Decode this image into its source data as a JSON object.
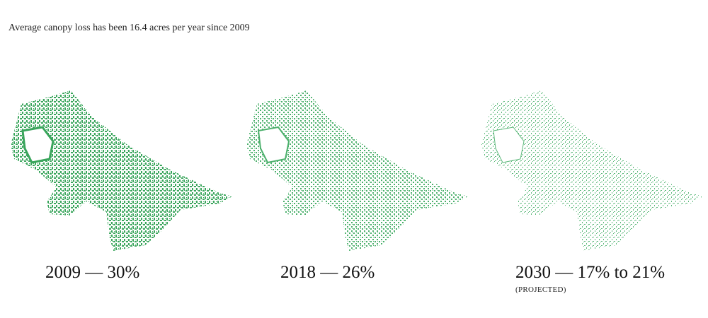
{
  "header": {
    "title": "Average canopy loss has been 16.4 acres per year since 2009"
  },
  "panels": [
    {
      "label": "2009 — 30%"
    },
    {
      "label": "2018 — 26%"
    },
    {
      "label": "2030 — 17% to 21%",
      "note": "(PROJECTED)"
    }
  ]
}
